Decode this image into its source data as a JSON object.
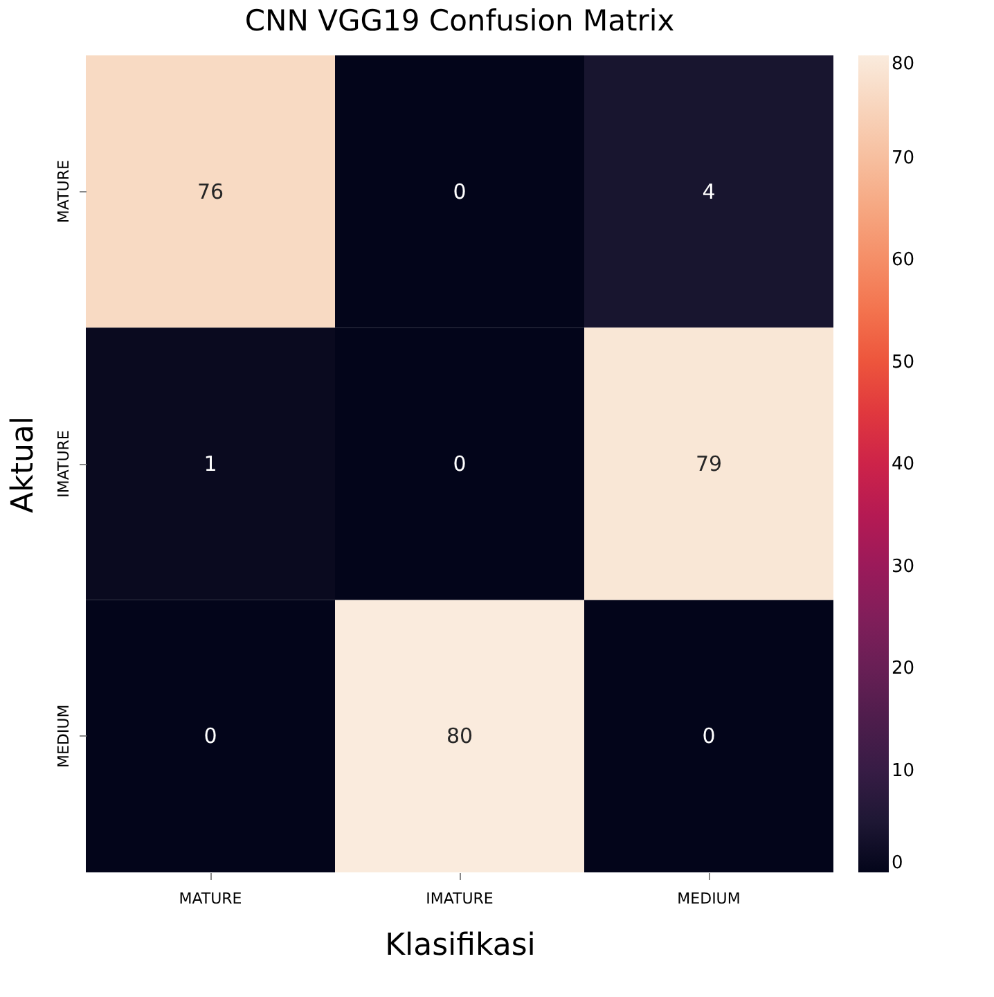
{
  "chart_data": {
    "type": "heatmap",
    "title": "CNN VGG19 Confusion Matrix",
    "xlabel": "Klasifikasi",
    "ylabel": "Aktual",
    "categories": [
      "MATURE",
      "IMATURE",
      "MEDIUM"
    ],
    "y_categories": [
      "MATURE",
      "IMATURE",
      "MEDIUM"
    ],
    "cells": [
      [
        76,
        0,
        4
      ],
      [
        1,
        0,
        79
      ],
      [
        0,
        80,
        0
      ]
    ],
    "data_labels": true,
    "clim": [
      0,
      80
    ],
    "cticks": [
      0,
      10,
      20,
      30,
      40,
      50,
      60,
      70,
      80
    ]
  }
}
